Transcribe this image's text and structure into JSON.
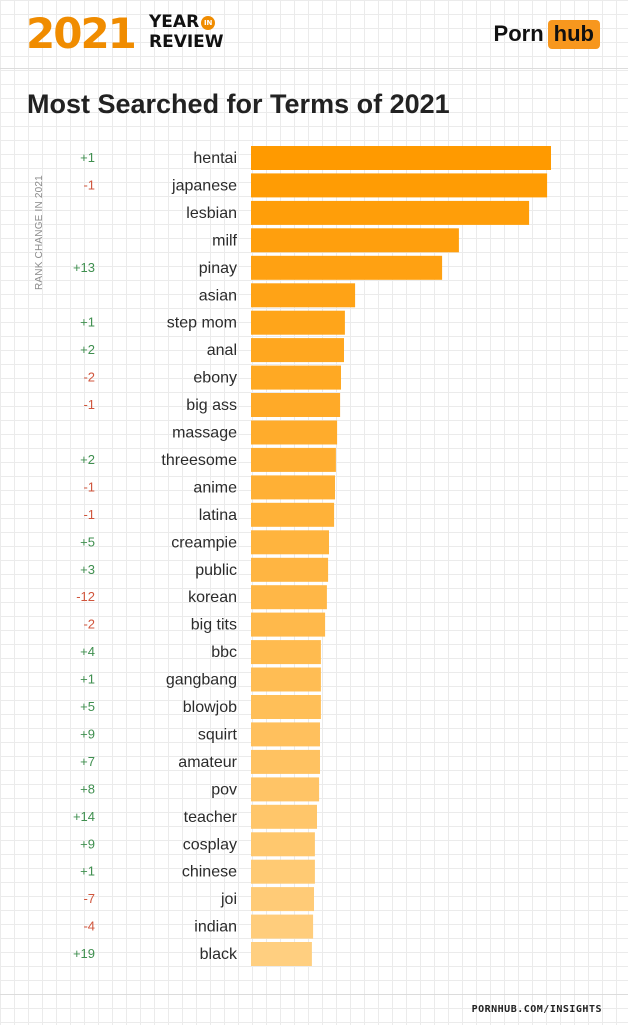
{
  "header": {
    "year": "2021",
    "year_word": "YEAR",
    "in_word": "IN",
    "review_word": "REVIEW",
    "logo_left": "Porn",
    "logo_right": "hub"
  },
  "footer": {
    "link": "PORNHUB.COM/INSIGHTS"
  },
  "colors": {
    "accent": "#f08c00",
    "positive": "#3f8f4f",
    "negative": "#d0553c"
  },
  "chart_data": {
    "type": "bar",
    "orientation": "horizontal",
    "title": "Most Searched for Terms of 2021",
    "side_label": "RANK CHANGE IN 2021",
    "categories": [
      "hentai",
      "japanese",
      "lesbian",
      "milf",
      "pinay",
      "asian",
      "step mom",
      "anal",
      "ebony",
      "big ass",
      "massage",
      "threesome",
      "anime",
      "latina",
      "creampie",
      "public",
      "korean",
      "big tits",
      "bbc",
      "gangbang",
      "blowjob",
      "squirt",
      "amateur",
      "pov",
      "teacher",
      "cosplay",
      "chinese",
      "joi",
      "indian",
      "black"
    ],
    "rank_change": [
      "+1",
      "-1",
      "",
      "",
      "+13",
      "",
      "+1",
      "+2",
      "-2",
      "-1",
      "",
      "+2",
      "-1",
      "-1",
      "+5",
      "+3",
      "-12",
      "-2",
      "+4",
      "+1",
      "+5",
      "+9",
      "+7",
      "+8",
      "+14",
      "+9",
      "+1",
      "-7",
      "-4",
      "+19"
    ],
    "values": [
      100,
      98.7,
      92.7,
      69.3,
      63.7,
      34.7,
      31.3,
      31.0,
      30.0,
      29.7,
      28.7,
      28.3,
      28.0,
      27.7,
      26.0,
      25.7,
      25.3,
      24.7,
      23.3,
      23.3,
      23.3,
      23.0,
      23.0,
      22.7,
      22.0,
      21.3,
      21.3,
      21.0,
      20.7,
      20.3
    ],
    "xlim": [
      0,
      100
    ],
    "color_start": "#ff9a00",
    "color_end": "#ffcf80"
  }
}
